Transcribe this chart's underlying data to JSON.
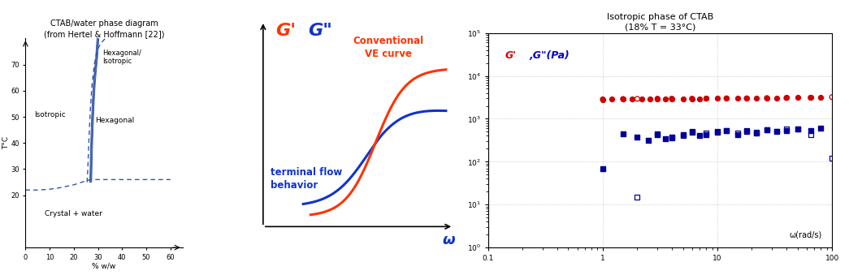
{
  "fig_width": 10.45,
  "fig_height": 3.39,
  "bg_color": "#ffffff",
  "panel1": {
    "title": "CTAB/water phase diagram\n(from Hertel & Hoffmann [22])",
    "title_fontsize": 7.0,
    "xlabel": "% w/w",
    "ylabel": "T°C",
    "xlim": [
      0,
      65
    ],
    "ylim": [
      0,
      80
    ],
    "xticks": [
      0,
      10,
      20,
      30,
      40,
      50,
      60
    ],
    "yticks": [
      20,
      30,
      40,
      50,
      60,
      70
    ],
    "label_fontsize": 6.5,
    "color": "#3355aa"
  },
  "panel2": {
    "label_G_color_prime": "#ff3300",
    "label_G_color_double": "#1133cc",
    "curve_color_red": "#ff3300",
    "curve_color_blue": "#1133cc"
  },
  "panel3": {
    "title": "Isotropic phase of CTAB\n(18% T = 33°C)",
    "title_fontsize": 8.0,
    "xlabel_inner": "ω(rad/s)",
    "ylabel_color_Gprime": "#dd0000",
    "ylabel_color_Gdouble": "#0000cc",
    "Gprime_filled_x": [
      1.0,
      1.2,
      1.5,
      1.8,
      2.2,
      2.6,
      3.0,
      3.5,
      4.0,
      5.0,
      6.0,
      7.0,
      8.0,
      10.0,
      12.0,
      15.0,
      18.0,
      22.0,
      27.0,
      33.0,
      40.0,
      50.0,
      65.0,
      80.0
    ],
    "Gprime_filled_y": [
      2800,
      2850,
      2900,
      2950,
      2950,
      2950,
      2950,
      2950,
      2950,
      2950,
      2950,
      2950,
      3000,
      3000,
      3000,
      3000,
      3000,
      3050,
      3050,
      3050,
      3100,
      3100,
      3100,
      3100
    ],
    "Gprime_open_x": [
      1.0,
      1.5,
      2.0,
      3.0,
      4.0,
      6.0,
      8.0,
      12.0,
      18.0,
      27.0,
      40.0,
      65.0,
      100.0
    ],
    "Gprime_open_y": [
      2850,
      2900,
      2920,
      2950,
      2950,
      2950,
      2950,
      3000,
      3000,
      3050,
      3050,
      3100,
      3200
    ],
    "Gdouble_filled_x": [
      1.0,
      1.5,
      2.0,
      2.5,
      3.0,
      3.5,
      4.0,
      5.0,
      6.0,
      7.0,
      8.0,
      10.0,
      12.0,
      15.0,
      18.0,
      22.0,
      27.0,
      33.0,
      40.0,
      50.0,
      65.0,
      80.0
    ],
    "Gdouble_filled_y": [
      70,
      450,
      380,
      320,
      420,
      350,
      380,
      420,
      480,
      400,
      430,
      480,
      520,
      430,
      500,
      460,
      560,
      510,
      540,
      580,
      540,
      600
    ],
    "Gdouble_open_x": [
      2.0,
      3.0,
      4.0,
      5.0,
      6.0,
      8.0,
      10.0,
      12.0,
      15.0,
      18.0,
      22.0,
      27.0,
      33.0,
      40.0,
      50.0,
      65.0,
      100.0
    ],
    "Gdouble_open_y": [
      15,
      450,
      360,
      400,
      520,
      460,
      500,
      530,
      460,
      540,
      490,
      560,
      520,
      570,
      580,
      420,
      120
    ],
    "color_red": "#cc0000",
    "color_blue": "#000099"
  }
}
